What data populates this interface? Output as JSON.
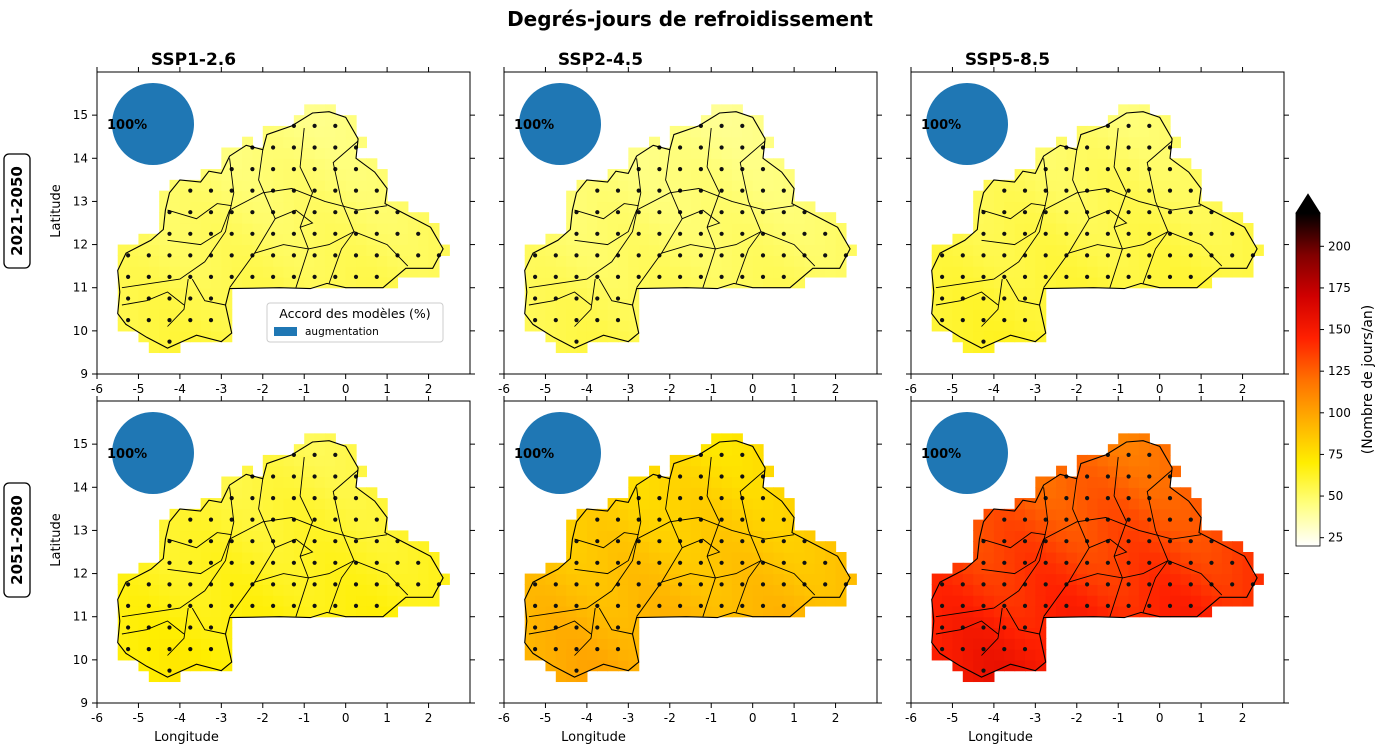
{
  "figure": {
    "title": "Degrés-jours de refroidissement",
    "columns": [
      "SSP1-2.6",
      "SSP2-4.5",
      "SSP5-8.5"
    ],
    "rows": [
      "2021-2050",
      "2051-2080"
    ]
  },
  "colorbar": {
    "label": "(Nombre de jours/an)",
    "ticks": [
      "25",
      "50",
      "75",
      "100",
      "125",
      "150",
      "175",
      "200"
    ],
    "min": 20,
    "max": 220,
    "extend": "max",
    "colormap": [
      "#ffffff",
      "#ffff80",
      "#ffee00",
      "#ffb000",
      "#ff7000",
      "#ff2000",
      "#d00000",
      "#800000",
      "#000000"
    ]
  },
  "legend": {
    "title": "Accord des modèles (%)",
    "item": "augmentation",
    "color": "#1f77b4"
  },
  "chart_data": {
    "type": "heatmap",
    "title": "Degrés-jours de refroidissement",
    "xlabel": "Longitude",
    "ylabel": "Latitude",
    "xlim": [
      -6,
      3
    ],
    "ylim": [
      9,
      16
    ],
    "xticks": [
      "-6",
      "-5",
      "-4",
      "-3",
      "-2",
      "-1",
      "0",
      "1",
      "2"
    ],
    "yticks": [
      "9",
      "10",
      "11",
      "12",
      "13",
      "14",
      "15"
    ],
    "stippling": "model agreement markers over Burkina Faso",
    "panels": [
      {
        "row": "2021-2050",
        "column": "SSP1-2.6",
        "mean_value": 52,
        "agreement_pct": "100%"
      },
      {
        "row": "2021-2050",
        "column": "SSP2-4.5",
        "mean_value": 50,
        "agreement_pct": "100%"
      },
      {
        "row": "2021-2050",
        "column": "SSP5-8.5",
        "mean_value": 56,
        "agreement_pct": "100%"
      },
      {
        "row": "2051-2080",
        "column": "SSP1-2.6",
        "mean_value": 64,
        "agreement_pct": "100%"
      },
      {
        "row": "2051-2080",
        "column": "SSP2-4.5",
        "mean_value": 88,
        "agreement_pct": "100%"
      },
      {
        "row": "2051-2080",
        "column": "SSP5-8.5",
        "mean_value": 138,
        "agreement_pct": "100%"
      }
    ]
  }
}
